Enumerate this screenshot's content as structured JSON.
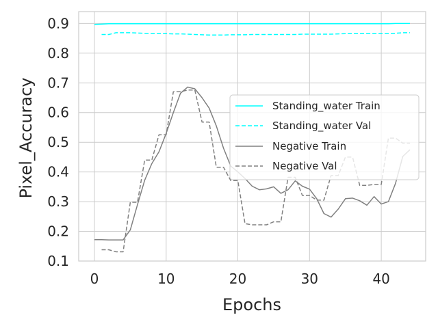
{
  "chart_data": {
    "type": "line",
    "title": "",
    "xlabel": "Epochs",
    "ylabel": "Pixel_Accuracy",
    "xlim": [
      -2.2,
      46.2
    ],
    "ylim": [
      0.1,
      0.94
    ],
    "xticks": [
      0,
      10,
      20,
      30,
      40
    ],
    "yticks": [
      0.1,
      0.2,
      0.3,
      0.4,
      0.5,
      0.6,
      0.7,
      0.8,
      0.9
    ],
    "grid": true,
    "legend_position": "center-right",
    "series": [
      {
        "name": "Standing_water Train",
        "color": "#00ffff",
        "dash": "solid",
        "x": [
          0,
          1,
          2,
          3,
          4,
          5,
          6,
          7,
          8,
          9,
          10,
          11,
          12,
          13,
          14,
          15,
          16,
          17,
          18,
          19,
          20,
          21,
          22,
          23,
          24,
          25,
          26,
          27,
          28,
          29,
          30,
          31,
          32,
          33,
          34,
          35,
          36,
          37,
          38,
          39,
          40,
          41,
          42,
          43,
          44
        ],
        "values": [
          0.897,
          0.898,
          0.899,
          0.899,
          0.899,
          0.899,
          0.899,
          0.899,
          0.899,
          0.899,
          0.899,
          0.899,
          0.899,
          0.899,
          0.899,
          0.899,
          0.899,
          0.899,
          0.899,
          0.899,
          0.899,
          0.899,
          0.899,
          0.899,
          0.899,
          0.899,
          0.899,
          0.899,
          0.899,
          0.899,
          0.899,
          0.899,
          0.899,
          0.899,
          0.899,
          0.899,
          0.899,
          0.899,
          0.899,
          0.899,
          0.899,
          0.899,
          0.9,
          0.9,
          0.9
        ]
      },
      {
        "name": "Standing_water Val",
        "color": "#00ffff",
        "dash": "dashed",
        "x": [
          1,
          2,
          3,
          4,
          5,
          6,
          7,
          8,
          9,
          10,
          11,
          12,
          13,
          14,
          15,
          16,
          17,
          18,
          19,
          20,
          21,
          22,
          23,
          24,
          25,
          26,
          27,
          28,
          29,
          30,
          31,
          32,
          33,
          34,
          35,
          36,
          37,
          38,
          39,
          40,
          41,
          42,
          43,
          44
        ],
        "values": [
          0.863,
          0.863,
          0.869,
          0.869,
          0.869,
          0.868,
          0.867,
          0.866,
          0.866,
          0.866,
          0.865,
          0.865,
          0.864,
          0.863,
          0.862,
          0.861,
          0.861,
          0.861,
          0.862,
          0.862,
          0.862,
          0.863,
          0.863,
          0.863,
          0.863,
          0.863,
          0.863,
          0.863,
          0.864,
          0.864,
          0.864,
          0.864,
          0.864,
          0.865,
          0.866,
          0.866,
          0.866,
          0.866,
          0.866,
          0.866,
          0.866,
          0.867,
          0.869,
          0.869
        ]
      },
      {
        "name": "Negative Train",
        "color": "#808080",
        "dash": "solid",
        "x": [
          0,
          1,
          2,
          3,
          4,
          5,
          6,
          7,
          8,
          9,
          10,
          11,
          12,
          13,
          14,
          15,
          16,
          17,
          18,
          19,
          20,
          21,
          22,
          23,
          24,
          25,
          26,
          27,
          28,
          29,
          30,
          31,
          32,
          33,
          34,
          35,
          36,
          37,
          38,
          39,
          40,
          41,
          42,
          43,
          44
        ],
        "values": [
          0.172,
          0.172,
          0.171,
          0.171,
          0.171,
          0.205,
          0.29,
          0.372,
          0.428,
          0.468,
          0.53,
          0.6,
          0.665,
          0.686,
          0.68,
          0.65,
          0.615,
          0.555,
          0.48,
          0.42,
          0.4,
          0.378,
          0.352,
          0.34,
          0.343,
          0.35,
          0.328,
          0.34,
          0.37,
          0.352,
          0.342,
          0.31,
          0.26,
          0.248,
          0.275,
          0.31,
          0.312,
          0.303,
          0.288,
          0.317,
          0.292,
          0.3,
          0.362,
          0.452,
          0.475
        ]
      },
      {
        "name": "Negative Val",
        "color": "#808080",
        "dash": "dashed",
        "x": [
          1,
          2,
          3,
          4,
          5,
          6,
          7,
          8,
          9,
          10,
          11,
          12,
          13,
          14,
          15,
          16,
          17,
          18,
          19,
          20,
          21,
          22,
          23,
          24,
          25,
          26,
          27,
          28,
          29,
          30,
          31,
          32,
          33,
          34,
          35,
          36,
          37,
          38,
          39,
          40,
          41,
          42,
          43,
          44
        ],
        "values": [
          0.138,
          0.138,
          0.131,
          0.131,
          0.298,
          0.298,
          0.44,
          0.44,
          0.525,
          0.525,
          0.67,
          0.67,
          0.676,
          0.676,
          0.568,
          0.568,
          0.416,
          0.416,
          0.371,
          0.371,
          0.226,
          0.222,
          0.222,
          0.222,
          0.232,
          0.232,
          0.382,
          0.382,
          0.321,
          0.321,
          0.305,
          0.305,
          0.388,
          0.388,
          0.45,
          0.45,
          0.355,
          0.355,
          0.358,
          0.358,
          0.514,
          0.514,
          0.497,
          0.497
        ]
      }
    ]
  }
}
